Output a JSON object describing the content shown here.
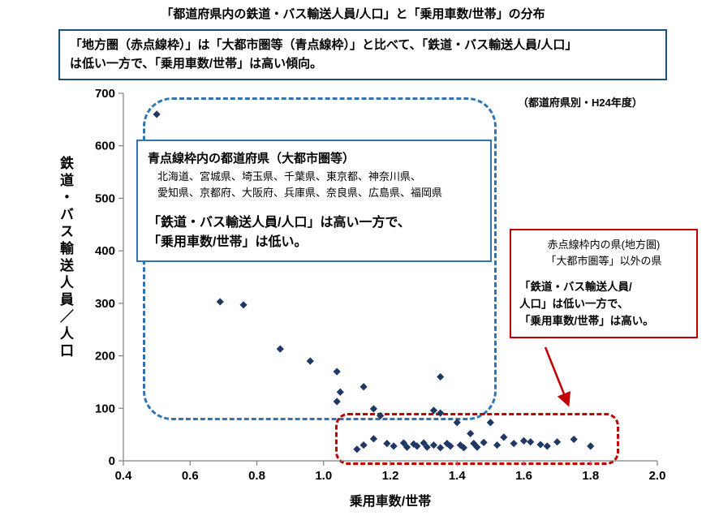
{
  "page": {
    "title": "「都道府県内の鉄道・バス輸送人員/人口」と「乗用車数/世帯」の分布",
    "note": "（都道府県別・H24年度）"
  },
  "summary_box": {
    "line1": "「地方圏（赤点線枠）」は「大都市圏等（青点線枠）」と比べて、「鉄道・バス輸送人員/人口」",
    "line2": "は低い一方で、「乗用車数/世帯」は高い傾向。"
  },
  "metro_box": {
    "heading": "青点線枠内の都道府県（大都市圏等）",
    "prefectures_line1": "北海道、宮城県、埼玉県、千葉県、東京都、神奈川県、",
    "prefectures_line2": "愛知県、京都府、大阪府、兵庫県、奈良県、広島県、福岡県",
    "statement_line1": "「鉄道・バス輸送人員/人口」は高い一方で、",
    "statement_line2": "「乗用車数/世帯」は低い。"
  },
  "regional_box": {
    "heading_line1": "赤点線枠内の県(地方圏)",
    "heading_line2": "「大都市圏等」以外の県",
    "statement_line1": "「鉄道・バス輸送人員/",
    "statement_line2": "人口」は低い一方で、",
    "statement_line3": "「乗用車数/世帯」は高い。"
  },
  "colors": {
    "marker": "#1F3864",
    "blue_accent": "#2E75B6",
    "dark_blue_border": "#1F4E79",
    "red_accent": "#C00000",
    "axis_gray": "#7F7F7F"
  },
  "chart_data": {
    "type": "scatter",
    "title": "「都道府県内の鉄道・バス輸送人員/人口」と「乗用車数/世帯」の分布",
    "xlabel": "乗用車数/世帯",
    "ylabel": "鉄道・バス輸送人員／人口",
    "xlim": [
      0.4,
      2.0
    ],
    "ylim": [
      0,
      700
    ],
    "grid": false,
    "legend": "none",
    "x_ticks": [
      0.4,
      0.6,
      0.8,
      1.0,
      1.2,
      1.4,
      1.6,
      1.8,
      2.0
    ],
    "y_ticks": [
      0,
      100,
      200,
      300,
      400,
      500,
      600,
      700
    ],
    "x_tick_labels": [
      "0.4",
      "0.6",
      "0.8",
      "1.0",
      "1.2",
      "1.4",
      "1.6",
      "1.8",
      "2.0"
    ],
    "y_tick_labels": [
      "0",
      "100",
      "200",
      "300",
      "400",
      "500",
      "600",
      "700"
    ],
    "points": [
      [
        0.5,
        660
      ],
      [
        0.69,
        303
      ],
      [
        0.76,
        297
      ],
      [
        0.87,
        213
      ],
      [
        0.96,
        190
      ],
      [
        1.04,
        170
      ],
      [
        1.05,
        131
      ],
      [
        1.04,
        113
      ],
      [
        1.12,
        141
      ],
      [
        1.15,
        99
      ],
      [
        1.17,
        86
      ],
      [
        1.33,
        96
      ],
      [
        1.35,
        91
      ],
      [
        1.35,
        160
      ],
      [
        1.1,
        22
      ],
      [
        1.12,
        30
      ],
      [
        1.15,
        42
      ],
      [
        1.19,
        33
      ],
      [
        1.21,
        28
      ],
      [
        1.24,
        34
      ],
      [
        1.25,
        26
      ],
      [
        1.27,
        32
      ],
      [
        1.28,
        28
      ],
      [
        1.3,
        34
      ],
      [
        1.31,
        26
      ],
      [
        1.33,
        30
      ],
      [
        1.35,
        25
      ],
      [
        1.37,
        33
      ],
      [
        1.38,
        28
      ],
      [
        1.4,
        73
      ],
      [
        1.41,
        30
      ],
      [
        1.42,
        25
      ],
      [
        1.44,
        52
      ],
      [
        1.45,
        33
      ],
      [
        1.46,
        26
      ],
      [
        1.48,
        35
      ],
      [
        1.5,
        73
      ],
      [
        1.52,
        30
      ],
      [
        1.54,
        45
      ],
      [
        1.57,
        33
      ],
      [
        1.6,
        38
      ],
      [
        1.62,
        36
      ],
      [
        1.65,
        31
      ],
      [
        1.67,
        28
      ],
      [
        1.7,
        36
      ],
      [
        1.75,
        41
      ],
      [
        1.8,
        28
      ]
    ]
  }
}
